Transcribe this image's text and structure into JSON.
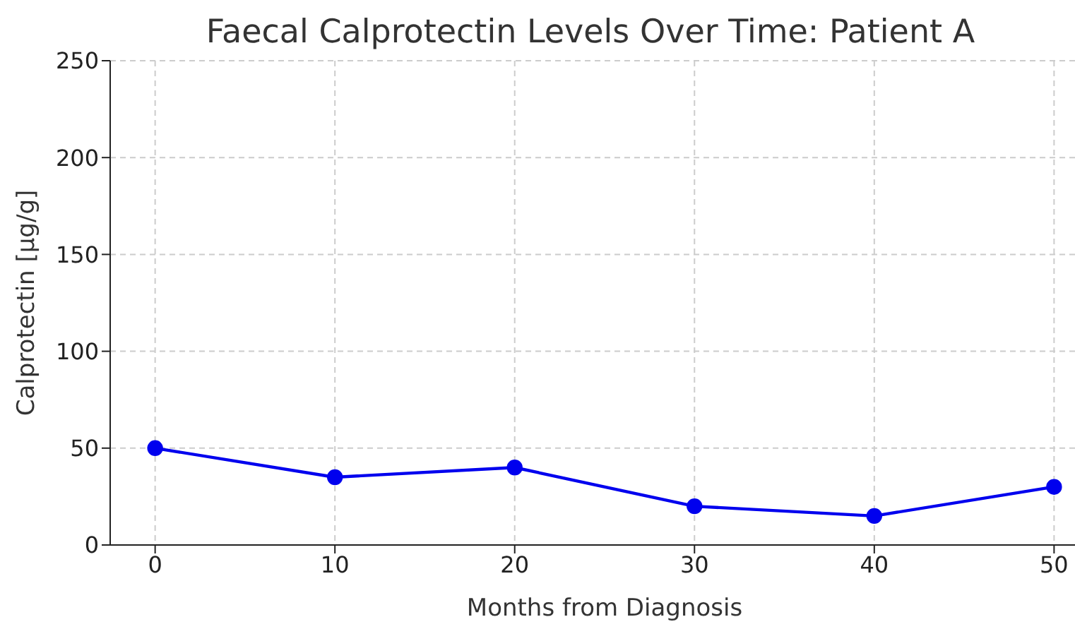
{
  "chart_data": {
    "type": "line",
    "title": "Faecal Calprotectin Levels Over Time: Patient A",
    "xlabel": "Months from Diagnosis",
    "ylabel": "Calprotectin [µg/g]",
    "x": [
      0,
      10,
      20,
      30,
      40,
      50
    ],
    "series": [
      {
        "color": "#0000ee",
        "values": [
          50,
          35,
          40,
          20,
          15,
          30
        ]
      }
    ],
    "xlim": [
      -2.5,
      52.5
    ],
    "xticks": [
      0,
      10,
      20,
      30,
      40,
      50
    ],
    "ylim": [
      0,
      250
    ],
    "yticks": [
      0,
      50,
      100,
      150,
      200,
      250
    ],
    "grid": true,
    "marker": "circle",
    "line_style": "solid",
    "legend": false
  }
}
